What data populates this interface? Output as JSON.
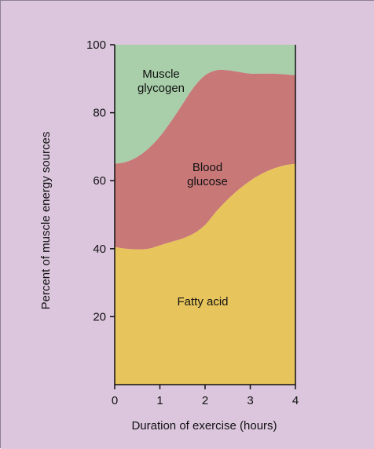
{
  "chart_data": {
    "type": "area",
    "stacked": true,
    "title": "",
    "xlabel": "Duration of exercise (hours)",
    "ylabel": "Percent of muscle energy sources",
    "xlim": [
      0,
      4
    ],
    "ylim": [
      0,
      100
    ],
    "x_ticks": [
      "0",
      "1",
      "2",
      "3",
      "4"
    ],
    "y_ticks": [
      "20",
      "40",
      "60",
      "80",
      "100"
    ],
    "grid": false,
    "legend": "none",
    "x": [
      0,
      0.25,
      0.5,
      0.75,
      1,
      1.25,
      1.5,
      1.75,
      2,
      2.25,
      2.5,
      2.75,
      3,
      3.25,
      3.5,
      3.75,
      4
    ],
    "series": [
      {
        "name": "Fatty acid",
        "label_lines": [
          "Fatty acid"
        ],
        "color": "#e8c55c",
        "values": [
          40.5,
          40.0,
          39.8,
          40.0,
          41.0,
          42.0,
          43.0,
          44.5,
          47.0,
          51.0,
          54.5,
          57.5,
          60.0,
          62.0,
          63.5,
          64.5,
          65.0
        ]
      },
      {
        "name": "Blood glucose",
        "label_lines": [
          "Blood",
          "glucose"
        ],
        "color": "#c97878",
        "values": [
          24.5,
          25.5,
          27.2,
          29.5,
          32.0,
          35.5,
          39.5,
          43.0,
          44.0,
          41.5,
          38.0,
          34.5,
          31.5,
          29.5,
          28.0,
          26.8,
          26.0
        ]
      },
      {
        "name": "Muscle glycogen",
        "label_lines": [
          "Muscle",
          "glycogen"
        ],
        "color": "#a9cfaa",
        "values": [
          35.0,
          34.5,
          33.0,
          30.5,
          27.0,
          22.5,
          17.5,
          12.5,
          9.0,
          7.5,
          7.5,
          8.0,
          8.5,
          8.5,
          8.5,
          8.7,
          9.0
        ]
      }
    ]
  },
  "colors": {
    "background": "#dcc6de",
    "axis": "#111111",
    "border": "#8e7f95"
  }
}
